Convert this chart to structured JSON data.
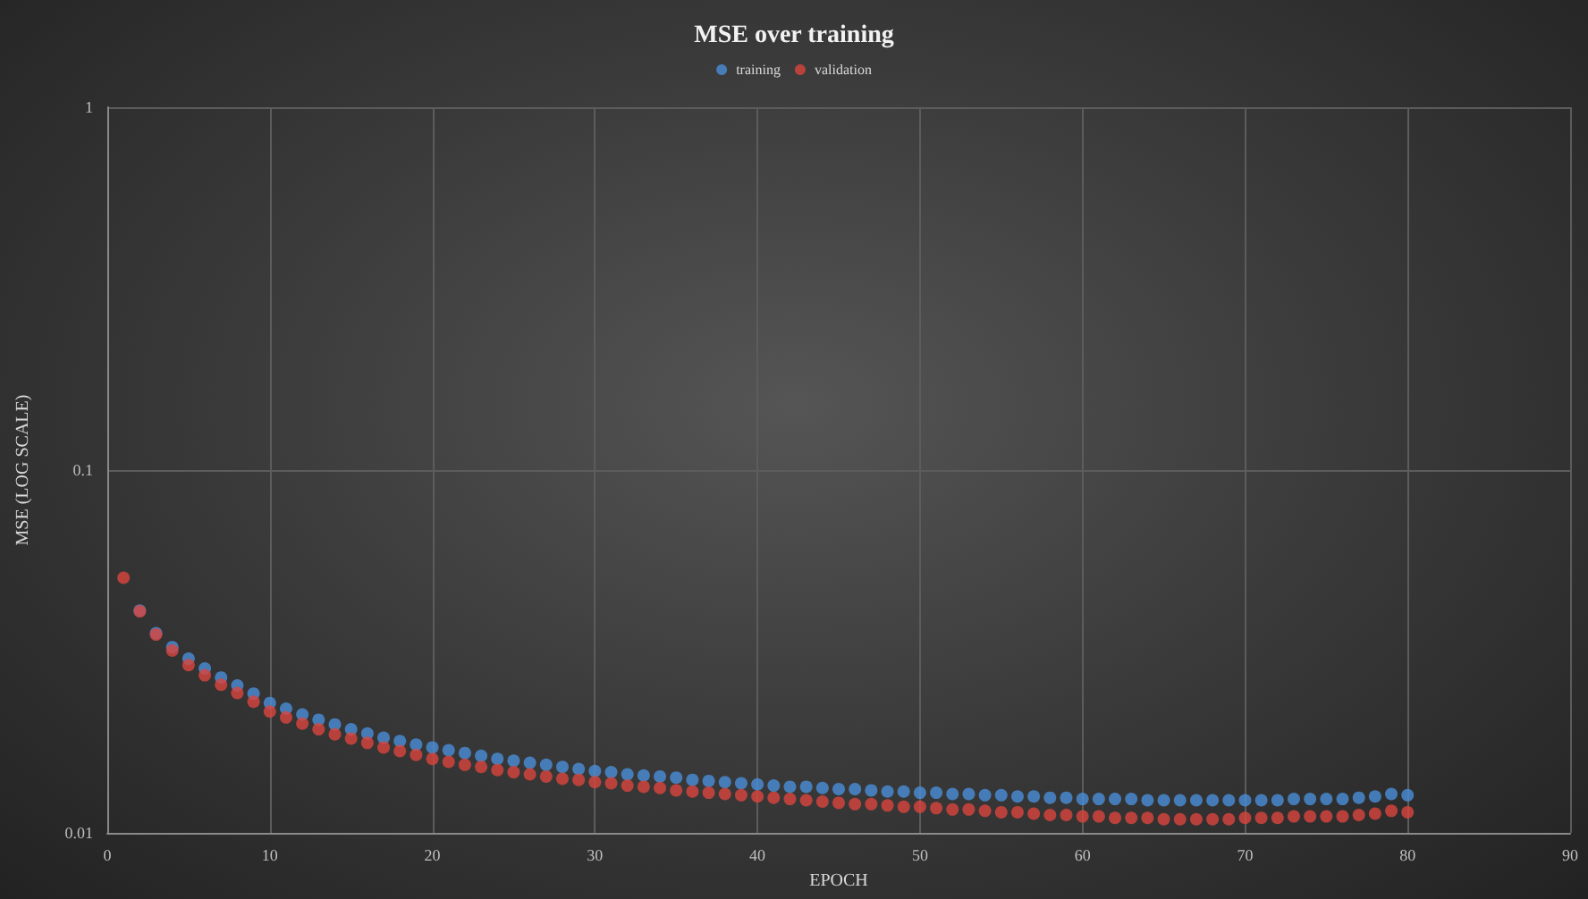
{
  "chart_data": {
    "type": "scatter",
    "title": "MSE over training",
    "xlabel": "EPOCH",
    "ylabel": "MSE (LOG SCALE)",
    "x": [
      1,
      2,
      3,
      4,
      5,
      6,
      7,
      8,
      9,
      10,
      11,
      12,
      13,
      14,
      15,
      16,
      17,
      18,
      19,
      20,
      21,
      22,
      23,
      24,
      25,
      26,
      27,
      28,
      29,
      30,
      31,
      32,
      33,
      34,
      35,
      36,
      37,
      38,
      39,
      40,
      41,
      42,
      43,
      44,
      45,
      46,
      47,
      48,
      49,
      50,
      51,
      52,
      53,
      54,
      55,
      56,
      57,
      58,
      59,
      60,
      61,
      62,
      63,
      64,
      65,
      66,
      67,
      68,
      69,
      70,
      71,
      72,
      73,
      74,
      75,
      76,
      77,
      78,
      79,
      80
    ],
    "series": [
      {
        "name": "training",
        "color": "#4a8fd8",
        "values": [
          null,
          0.041,
          0.0355,
          0.0325,
          0.0302,
          0.0284,
          0.0268,
          0.0255,
          0.0242,
          0.0228,
          0.022,
          0.0212,
          0.0205,
          0.0199,
          0.0193,
          0.0188,
          0.0183,
          0.0179,
          0.0175,
          0.0172,
          0.0169,
          0.0166,
          0.0163,
          0.016,
          0.0158,
          0.0156,
          0.0154,
          0.0152,
          0.015,
          0.0148,
          0.0147,
          0.0145,
          0.0144,
          0.0143,
          0.0142,
          0.014,
          0.0139,
          0.0138,
          0.0137,
          0.0136,
          0.0135,
          0.0134,
          0.0134,
          0.0133,
          0.0132,
          0.0132,
          0.0131,
          0.013,
          0.013,
          0.0129,
          0.0129,
          0.0128,
          0.0128,
          0.0127,
          0.0127,
          0.0126,
          0.0126,
          0.0125,
          0.0125,
          0.0124,
          0.0124,
          0.0124,
          0.0124,
          0.0123,
          0.0123,
          0.0123,
          0.0123,
          0.0123,
          0.0123,
          0.0123,
          0.0123,
          0.0123,
          0.0124,
          0.0124,
          0.0124,
          0.0124,
          0.0125,
          0.0126,
          0.0128,
          0.0127
        ]
      },
      {
        "name": "validation",
        "color": "#d9453d",
        "values": [
          0.0505,
          0.0408,
          0.0352,
          0.0318,
          0.029,
          0.0272,
          0.0256,
          0.0243,
          0.023,
          0.0216,
          0.0208,
          0.02,
          0.0193,
          0.0187,
          0.0182,
          0.0177,
          0.0172,
          0.0168,
          0.0164,
          0.016,
          0.0157,
          0.0154,
          0.0152,
          0.0149,
          0.0147,
          0.0145,
          0.0143,
          0.0141,
          0.014,
          0.0138,
          0.0137,
          0.0135,
          0.0134,
          0.0133,
          0.0131,
          0.013,
          0.0129,
          0.0128,
          0.0127,
          0.0126,
          0.0125,
          0.0124,
          0.0123,
          0.0122,
          0.0121,
          0.012,
          0.012,
          0.0119,
          0.0118,
          0.0118,
          0.0117,
          0.0116,
          0.0116,
          0.0115,
          0.0114,
          0.0114,
          0.0113,
          0.0112,
          0.0112,
          0.0111,
          0.0111,
          0.011,
          0.011,
          0.011,
          0.0109,
          0.0109,
          0.0109,
          0.0109,
          0.0109,
          0.011,
          0.011,
          0.011,
          0.0111,
          0.0111,
          0.0111,
          0.0111,
          0.0112,
          0.0113,
          0.0115,
          0.0114
        ]
      }
    ],
    "xlim": [
      0,
      90
    ],
    "xticks": [
      0,
      10,
      20,
      30,
      40,
      50,
      60,
      70,
      80,
      90
    ],
    "ylim": [
      0.01,
      1
    ],
    "yticks": [
      0.01,
      0.1,
      1
    ],
    "log": "y",
    "grid": true,
    "legend": "top",
    "marker": "circle"
  }
}
